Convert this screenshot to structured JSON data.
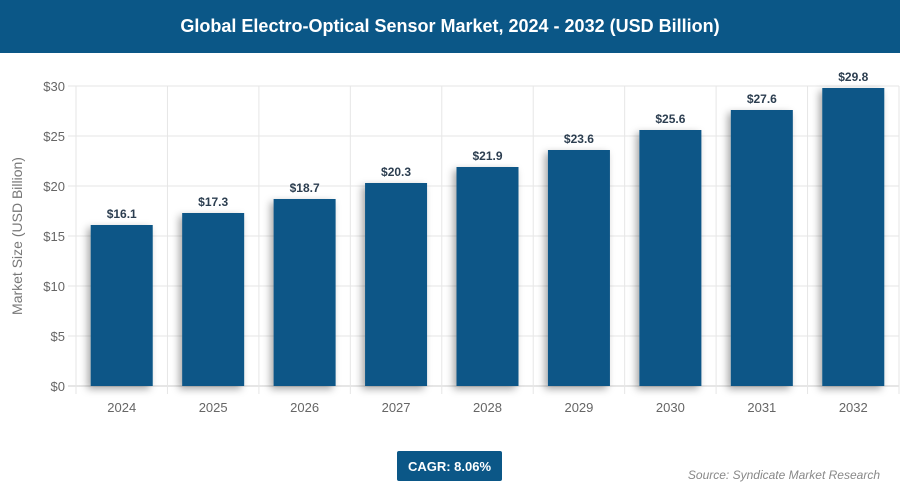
{
  "chart_data": {
    "type": "bar",
    "title": "Global Electro-Optical Sensor Market, 2024 - 2032 (USD Billion)",
    "xlabel": "",
    "ylabel": "Market Size (USD Billion)",
    "categories": [
      "2024",
      "2025",
      "2026",
      "2027",
      "2028",
      "2029",
      "2030",
      "2031",
      "2032"
    ],
    "values": [
      16.1,
      17.3,
      18.7,
      20.3,
      21.9,
      23.6,
      25.6,
      27.6,
      29.8
    ],
    "data_labels": [
      "$16.1",
      "$17.3",
      "$18.7",
      "$20.3",
      "$21.9",
      "$23.6",
      "$25.6",
      "$27.6",
      "$29.8"
    ],
    "ylim": [
      0,
      30
    ],
    "yticks": [
      "$0",
      "$5",
      "$10",
      "$15",
      "$20",
      "$25",
      "$30"
    ],
    "grid": true,
    "bar_color": "#0b5787"
  },
  "cagr": "CAGR: 8.06%",
  "source": "Source: Syndicate Market Research"
}
